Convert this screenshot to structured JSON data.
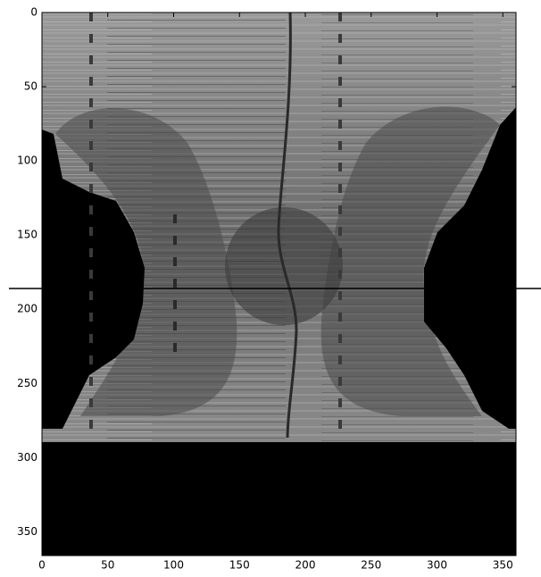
{
  "chart_data": {
    "type": "image",
    "xlim": [
      0,
      360
    ],
    "ylim": [
      0,
      366
    ],
    "y_inverted": true,
    "xticks": [
      0,
      50,
      100,
      150,
      200,
      250,
      300,
      350
    ],
    "yticks": [
      0,
      50,
      100,
      150,
      200,
      250,
      300,
      350
    ],
    "hline": 186
  }
}
